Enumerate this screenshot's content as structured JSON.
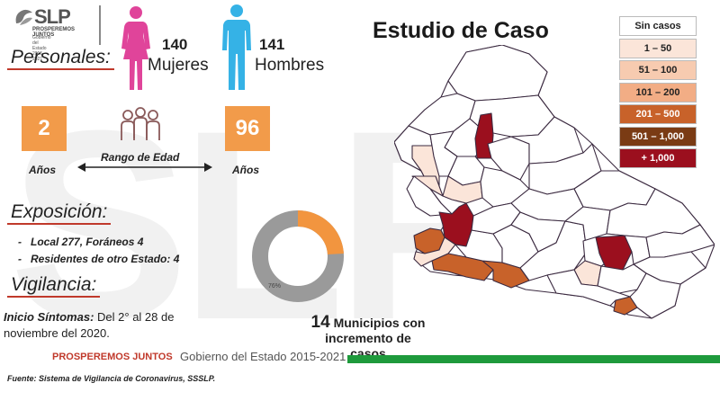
{
  "logo": {
    "name": "SLP",
    "tagline": "PROSPEREMOS JUNTOS",
    "subtitle": "Gobierno del Estado 2015-2021"
  },
  "sections": {
    "personales": "Personales:",
    "exposicion": "Exposición:",
    "vigilancia": "Vigilancia:"
  },
  "gender": {
    "women_count": "140",
    "women_label": "Mujeres",
    "women_color": "#e0449a",
    "men_count": "141",
    "men_label": "Hombres",
    "men_color": "#35b2e6"
  },
  "age": {
    "min": "2",
    "max": "96",
    "unit_left": "Años",
    "unit_right": "Años",
    "range_label": "Rango de Edad"
  },
  "exposicion": {
    "line1": "Local  277, Foráneos 4",
    "line2": "Residentes de otro Estado: 4"
  },
  "vigilancia": {
    "label": "Inicio Síntomas:",
    "text": "Del 2° al 28 de noviembre del 2020."
  },
  "map": {
    "title": "Estudio de Caso"
  },
  "legend": [
    {
      "label": "Sin casos",
      "color": "#ffffff",
      "text_color": "#222"
    },
    {
      "label": "1 – 50",
      "color": "#fbe5d9",
      "text_color": "#222"
    },
    {
      "label": "51 – 100",
      "color": "#f7cbb0",
      "text_color": "#222"
    },
    {
      "label": "101 – 200",
      "color": "#f2ad85",
      "text_color": "#222"
    },
    {
      "label": "201 – 500",
      "color": "#c8622a",
      "text_color": "#ffffff"
    },
    {
      "label": "501 – 1,000",
      "color": "#7a3b14",
      "text_color": "#ffffff"
    },
    {
      "label": "+ 1,000",
      "color": "#9b0f1e",
      "text_color": "#ffffff"
    }
  ],
  "donut": {
    "percent_label": "76%",
    "value": 0.76,
    "main_color": "#9a9a9a",
    "accent_color": "#f2953f"
  },
  "incremento": {
    "number": "14",
    "line1": "Municipios con",
    "line2": "incremento de",
    "line3": "casos"
  },
  "footer": {
    "brand": "PROSPEREMOS JUNTOS",
    "gov": "Gobierno del Estado 2015-2021",
    "source": "Fuente: Sistema de Vigilancia de Coronavirus, SSSLP.",
    "bar_color": "#1e9a3c"
  }
}
